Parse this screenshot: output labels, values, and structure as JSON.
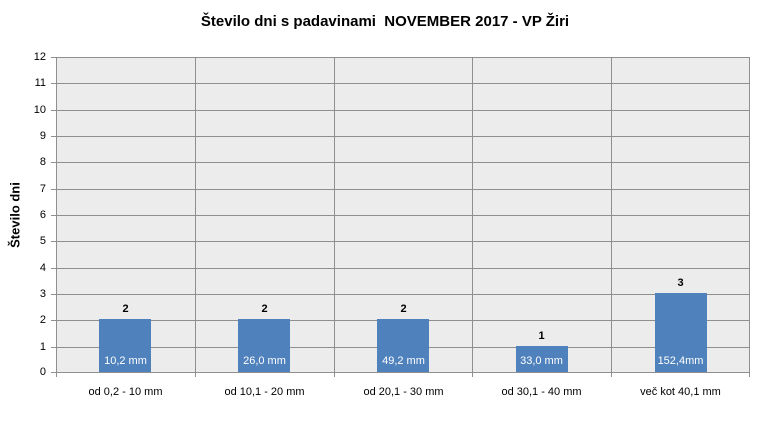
{
  "chart_data": {
    "type": "bar",
    "title": "Število dni s padavinami  NOVEMBER 2017 - VP Žiri",
    "ylabel": "Število dni",
    "xlabel": "",
    "categories": [
      "od 0,2 - 10 mm",
      "od 10,1 - 20 mm",
      "od 20,1 - 30 mm",
      "od 30,1 - 40 mm",
      "več kot 40,1 mm"
    ],
    "values": [
      2,
      2,
      2,
      1,
      3
    ],
    "bar_labels": [
      "10,2 mm",
      "26,0 mm",
      "49,2 mm",
      "33,0 mm",
      "152,4mm"
    ],
    "y_ticks": [
      0,
      1,
      2,
      3,
      4,
      5,
      6,
      7,
      8,
      9,
      10,
      11,
      12
    ],
    "ylim": [
      0,
      12
    ],
    "grid": true,
    "legend": "none",
    "colors": {
      "bar_fill": "#4F81BD",
      "bar_label_text": "#FFFFFF",
      "plot_background": "#ECECEC",
      "gridline": "#8F8F8F",
      "text": "#000000",
      "chart_background": "#FFFFFF"
    }
  }
}
